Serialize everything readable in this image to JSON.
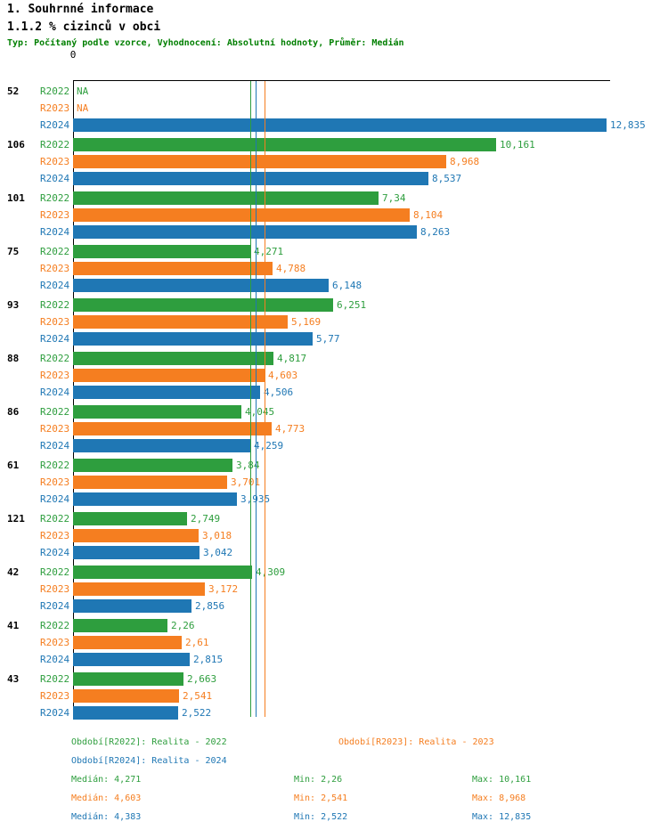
{
  "header": {
    "title": "1. Souhrnné informace",
    "subtitle": "1.1.2 % cizinců v obci",
    "note": "Typ: Počítaný podle vzorce, Vyhodnocení: Absolutní hodnoty, Průměr: Medián"
  },
  "chart_data": {
    "type": "bar",
    "orientation": "horizontal",
    "grid": false,
    "legend_position": "bottom",
    "value_axis": {
      "origin_label": "0",
      "min": 0,
      "max_shown": 12.835
    },
    "series": [
      {
        "name": "R2022",
        "color": "#2e9e3e",
        "legend": "Období[R2022]: Realita - 2022",
        "median": 4.271,
        "median_label": "Medián: 4,271",
        "min_label": "Min: 2,26",
        "max_label": "Max: 10,161"
      },
      {
        "name": "R2023",
        "color": "#f57e20",
        "legend": "Období[R2023]: Realita - 2023",
        "median": 4.603,
        "median_label": "Medián: 4,603",
        "min_label": "Min: 2,541",
        "max_label": "Max: 8,968"
      },
      {
        "name": "R2024",
        "color": "#1f77b4",
        "legend": "Období[R2024]: Realita - 2024",
        "median": 4.383,
        "median_label": "Medián: 4,383",
        "min_label": "Min: 2,522",
        "max_label": "Max: 12,835"
      }
    ],
    "groups": [
      {
        "label": "52",
        "values": [
          null,
          null,
          12.835
        ],
        "display": [
          "NA",
          "NA",
          "12,835"
        ]
      },
      {
        "label": "106",
        "values": [
          10.161,
          8.968,
          8.537
        ],
        "display": [
          "10,161",
          "8,968",
          "8,537"
        ]
      },
      {
        "label": "101",
        "values": [
          7.34,
          8.104,
          8.263
        ],
        "display": [
          "7,34",
          "8,104",
          "8,263"
        ]
      },
      {
        "label": "75",
        "values": [
          4.271,
          4.788,
          6.148
        ],
        "display": [
          "4,271",
          "4,788",
          "6,148"
        ]
      },
      {
        "label": "93",
        "values": [
          6.251,
          5.169,
          5.77
        ],
        "display": [
          "6,251",
          "5,169",
          "5,77"
        ]
      },
      {
        "label": "88",
        "values": [
          4.817,
          4.603,
          4.506
        ],
        "display": [
          "4,817",
          "4,603",
          "4,506"
        ]
      },
      {
        "label": "86",
        "values": [
          4.045,
          4.773,
          4.259
        ],
        "display": [
          "4,045",
          "4,773",
          "4,259"
        ]
      },
      {
        "label": "61",
        "values": [
          3.84,
          3.701,
          3.935
        ],
        "display": [
          "3,84",
          "3,701",
          "3,935"
        ]
      },
      {
        "label": "121",
        "values": [
          2.749,
          3.018,
          3.042
        ],
        "display": [
          "2,749",
          "3,018",
          "3,042"
        ]
      },
      {
        "label": "42",
        "values": [
          4.309,
          3.172,
          2.856
        ],
        "display": [
          "4,309",
          "3,172",
          "2,856"
        ]
      },
      {
        "label": "41",
        "values": [
          2.26,
          2.61,
          2.815
        ],
        "display": [
          "2,26",
          "2,61",
          "2,815"
        ]
      },
      {
        "label": "43",
        "values": [
          2.663,
          2.541,
          2.522
        ],
        "display": [
          "2,663",
          "2,541",
          "2,522"
        ]
      }
    ]
  }
}
